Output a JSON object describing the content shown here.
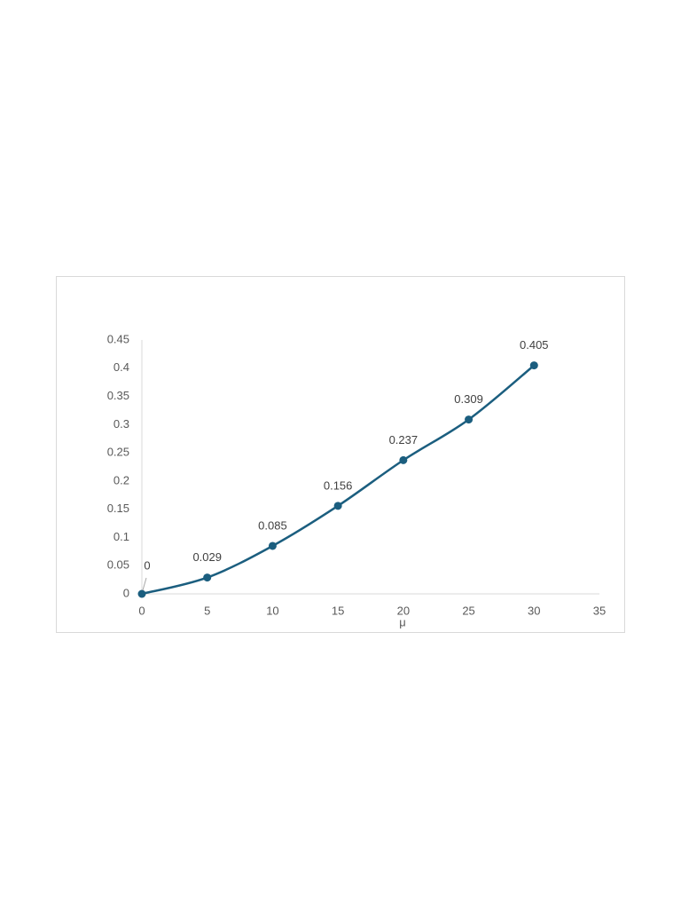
{
  "chart_data": {
    "type": "line",
    "x_label": "μ",
    "x": [
      0,
      5,
      10,
      15,
      20,
      25,
      30
    ],
    "series": [
      {
        "color": "#1b5e7f",
        "values": [
          0,
          0.029,
          0.085,
          0.156,
          0.237,
          0.309,
          0.405
        ]
      }
    ],
    "xlim": [
      0,
      35
    ],
    "xticks": [
      0,
      5,
      10,
      15,
      20,
      25,
      30,
      35
    ],
    "ylim": [
      0,
      0.45
    ],
    "yticks": [
      0,
      0.05,
      0.1,
      0.15,
      0.2,
      0.25,
      0.3,
      0.35,
      0.4,
      0.45
    ],
    "grid": false,
    "smooth": true,
    "data_labels": true
  }
}
